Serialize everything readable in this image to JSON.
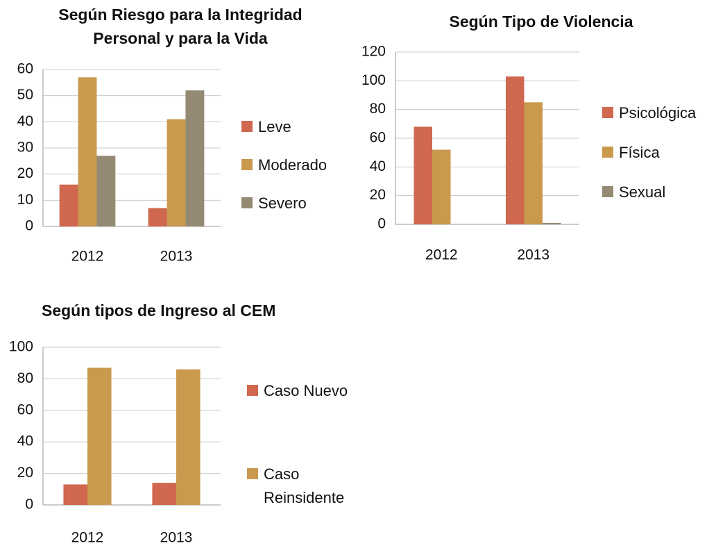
{
  "chart_data": [
    {
      "type": "bar",
      "title": "Según Riesgo para la Integridad Personal y para la Vida",
      "categories": [
        "2012",
        "2013"
      ],
      "series": [
        {
          "name": "Leve",
          "color": "#d0674f",
          "values": [
            16,
            7
          ]
        },
        {
          "name": "Moderado",
          "color": "#c99a4e",
          "values": [
            57,
            41
          ]
        },
        {
          "name": "Severo",
          "color": "#948a73",
          "values": [
            27,
            52
          ]
        }
      ],
      "ylim": [
        0,
        60
      ],
      "yticks": [
        0,
        10,
        20,
        30,
        40,
        50,
        60
      ],
      "grid": true,
      "legend": "right"
    },
    {
      "type": "bar",
      "title": "Según Tipo de Violencia",
      "categories": [
        "2012",
        "2013"
      ],
      "series": [
        {
          "name": "Psicológica",
          "color": "#d0674f",
          "values": [
            68,
            103
          ]
        },
        {
          "name": "Física",
          "color": "#c99a4e",
          "values": [
            52,
            85
          ]
        },
        {
          "name": "Sexual",
          "color": "#948a73",
          "values": [
            0,
            1
          ]
        }
      ],
      "ylim": [
        0,
        120
      ],
      "yticks": [
        0,
        20,
        40,
        60,
        80,
        100,
        120
      ],
      "grid": true,
      "legend": "right"
    },
    {
      "type": "bar",
      "title": "Según tipos de Ingreso al CEM",
      "categories": [
        "2012",
        "2013"
      ],
      "series": [
        {
          "name": "Caso Nuevo",
          "color": "#d0674f",
          "values": [
            13,
            14
          ]
        },
        {
          "name": "Caso Reinsidente",
          "color": "#c99a4e",
          "values": [
            87,
            86
          ]
        }
      ],
      "ylim": [
        0,
        100
      ],
      "yticks": [
        0,
        20,
        40,
        60,
        80,
        100
      ],
      "grid": true,
      "legend": "right"
    }
  ]
}
